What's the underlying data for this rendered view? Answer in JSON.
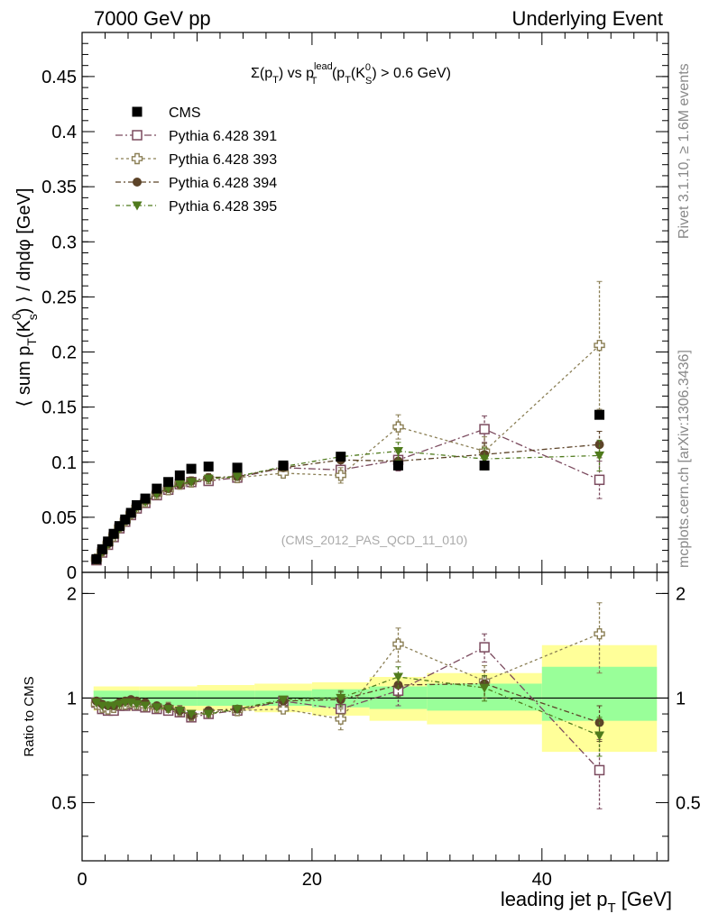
{
  "header": {
    "left_text": "7000 GeV pp",
    "right_text": "Underlying Event"
  },
  "plot_title": {
    "sigma": "Σ(p",
    "sub_t1": "T",
    "vs": ") vs p",
    "sup_lead": "lead",
    "sub_t2": "T",
    "paren": " (p",
    "sub_t3": "T",
    "k": "(K",
    "sup_0": "0",
    "sub_s": "S",
    "tail": ") > 0.6 GeV)"
  },
  "side_labels": {
    "rivet": "Rivet 3.1.10, ≥ 1.6M events",
    "mcplots": "mcplots.cern.ch [arXiv:1306.3436]"
  },
  "analysis_note": "(CMS_2012_PAS_QCD_11_010)",
  "y_label_main": "⟨ sum p_T(K_S^0) ⟩ / dηdφ [GeV]",
  "y_label_main_parts": {
    "open": "⟨ sum p",
    "sub_t": "T",
    "k": "(K",
    "sup_0": "0",
    "sub_s": "s",
    "close": ") ⟩ / dηdφ [GeV]"
  },
  "y_label_ratio": "Ratio to CMS",
  "x_label": {
    "main": "leading jet p",
    "sub": "T",
    "unit": " [GeV]"
  },
  "colors": {
    "cms": "#000000",
    "p391": "#7b4a5e",
    "p393": "#8b7f55",
    "p394": "#5c4328",
    "p395": "#4f7a1c",
    "band_yellow": "#ffff99",
    "band_green": "#99ff99"
  },
  "chart_data": [
    {
      "type": "scatter",
      "panel": "main",
      "ylim": [
        0,
        0.49
      ],
      "xlim": [
        0,
        51
      ],
      "yticks": [
        0,
        0.05,
        0.1,
        0.15,
        0.2,
        0.25,
        0.3,
        0.35,
        0.4,
        0.45
      ],
      "ytick_labels": [
        "0",
        "0.05",
        "0.1",
        "0.15",
        "0.2",
        "0.25",
        "0.3",
        "0.35",
        "0.4",
        "0.45"
      ],
      "xticks": [
        0,
        20,
        40
      ],
      "xtick_labels": [
        "0",
        "20",
        "40"
      ],
      "legend_position": "top-left",
      "x": [
        1.25,
        1.75,
        2.25,
        2.75,
        3.25,
        3.75,
        4.25,
        4.75,
        5.5,
        6.5,
        7.5,
        8.5,
        9.5,
        11,
        13.5,
        17.5,
        22.5,
        27.5,
        35,
        45
      ],
      "series": [
        {
          "name": "CMS",
          "marker": "square-filled",
          "values": [
            0.012,
            0.021,
            0.028,
            0.035,
            0.042,
            0.048,
            0.054,
            0.061,
            0.067,
            0.076,
            0.082,
            0.088,
            0.094,
            0.096,
            0.095,
            0.097,
            0.105,
            0.097,
            0.097,
            0.143
          ]
        },
        {
          "name": "Pythia 6.428 391",
          "marker": "square-open",
          "values": [
            0.011,
            0.018,
            0.025,
            0.032,
            0.04,
            0.046,
            0.052,
            0.058,
            0.063,
            0.07,
            0.075,
            0.08,
            0.082,
            0.083,
            0.086,
            0.095,
            0.093,
            0.102,
            0.13,
            0.084
          ],
          "errors": [
            0,
            0,
            0,
            0,
            0,
            0,
            0,
            0,
            0,
            0,
            0,
            0,
            0,
            0,
            0,
            0,
            0.006,
            0.01,
            0.012,
            0.017
          ]
        },
        {
          "name": "Pythia 6.428 393",
          "marker": "cross-open",
          "values": [
            0.012,
            0.019,
            0.026,
            0.033,
            0.041,
            0.047,
            0.053,
            0.059,
            0.064,
            0.071,
            0.075,
            0.08,
            0.082,
            0.085,
            0.086,
            0.09,
            0.088,
            0.132,
            0.11,
            0.206
          ],
          "errors": [
            0,
            0,
            0,
            0,
            0,
            0,
            0,
            0,
            0,
            0,
            0,
            0,
            0,
            0,
            0,
            0,
            0.007,
            0.011,
            0.013,
            0.058
          ]
        },
        {
          "name": "Pythia 6.428 394",
          "marker": "circle-filled",
          "values": [
            0.012,
            0.019,
            0.026,
            0.034,
            0.041,
            0.047,
            0.054,
            0.06,
            0.065,
            0.072,
            0.076,
            0.08,
            0.083,
            0.086,
            0.087,
            0.095,
            0.102,
            0.101,
            0.107,
            0.116
          ],
          "errors": [
            0,
            0,
            0,
            0,
            0,
            0,
            0,
            0,
            0,
            0,
            0,
            0,
            0,
            0,
            0,
            0,
            0,
            0.008,
            0.01,
            0.012
          ]
        },
        {
          "name": "Pythia 6.428 395",
          "marker": "triangle-down-filled",
          "values": [
            0.012,
            0.019,
            0.026,
            0.034,
            0.04,
            0.047,
            0.053,
            0.059,
            0.064,
            0.071,
            0.076,
            0.08,
            0.082,
            0.085,
            0.087,
            0.096,
            0.105,
            0.11,
            0.103,
            0.106
          ],
          "errors": [
            0,
            0,
            0,
            0,
            0,
            0,
            0,
            0,
            0,
            0,
            0,
            0,
            0,
            0,
            0,
            0,
            0,
            0.008,
            0.01,
            0.014
          ]
        }
      ]
    },
    {
      "type": "scatter",
      "panel": "ratio",
      "ylim": [
        0.34,
        2.3
      ],
      "xlim": [
        0,
        51
      ],
      "yticks": [
        0.5,
        1,
        2
      ],
      "ytick_labels": [
        "0.5",
        "1",
        "2"
      ],
      "xticks": [
        0,
        20,
        40
      ],
      "xtick_labels": [
        "0",
        "20",
        "40"
      ],
      "reference_line": 1,
      "bands": [
        {
          "x0": 1,
          "x1": 5,
          "yellow": [
            0.92,
            1.08
          ],
          "green": [
            0.95,
            1.05
          ]
        },
        {
          "x0": 5,
          "x1": 10,
          "yellow": [
            0.92,
            1.08
          ],
          "green": [
            0.95,
            1.05
          ]
        },
        {
          "x0": 10,
          "x1": 15,
          "yellow": [
            0.92,
            1.09
          ],
          "green": [
            0.95,
            1.05
          ]
        },
        {
          "x0": 15,
          "x1": 20,
          "yellow": [
            0.91,
            1.1
          ],
          "green": [
            0.95,
            1.05
          ]
        },
        {
          "x0": 20,
          "x1": 25,
          "yellow": [
            0.89,
            1.11
          ],
          "green": [
            0.94,
            1.06
          ]
        },
        {
          "x0": 25,
          "x1": 30,
          "yellow": [
            0.86,
            1.15
          ],
          "green": [
            0.93,
            1.08
          ]
        },
        {
          "x0": 30,
          "x1": 40,
          "yellow": [
            0.84,
            1.18
          ],
          "green": [
            0.92,
            1.1
          ]
        },
        {
          "x0": 40,
          "x1": 50,
          "yellow": [
            0.7,
            1.42
          ],
          "green": [
            0.86,
            1.23
          ]
        }
      ],
      "x": [
        1.25,
        1.75,
        2.25,
        2.75,
        3.25,
        3.75,
        4.25,
        4.75,
        5.5,
        6.5,
        7.5,
        8.5,
        9.5,
        11,
        13.5,
        17.5,
        22.5,
        27.5,
        35,
        45
      ],
      "series": [
        {
          "name": "Pythia 6.428 391",
          "values": [
            0.97,
            0.93,
            0.92,
            0.92,
            0.95,
            0.95,
            0.96,
            0.95,
            0.94,
            0.93,
            0.92,
            0.91,
            0.88,
            0.9,
            0.92,
            0.98,
            0.93,
            1.05,
            1.4,
            0.62
          ],
          "errors": [
            0,
            0,
            0,
            0,
            0,
            0,
            0,
            0,
            0,
            0,
            0,
            0,
            0,
            0,
            0,
            0,
            0.06,
            0.1,
            0.13,
            0.14
          ]
        },
        {
          "name": "Pythia 6.428 393",
          "values": [
            0.96,
            0.94,
            0.93,
            0.94,
            0.96,
            0.96,
            0.97,
            0.96,
            0.95,
            0.94,
            0.94,
            0.92,
            0.89,
            0.91,
            0.92,
            0.93,
            0.87,
            1.43,
            1.12,
            1.53
          ],
          "errors": [
            0,
            0,
            0,
            0,
            0,
            0,
            0,
            0,
            0,
            0,
            0,
            0,
            0,
            0,
            0,
            0,
            0.06,
            0.16,
            0.12,
            0.35
          ]
        },
        {
          "name": "Pythia 6.428 394",
          "values": [
            0.98,
            0.96,
            0.95,
            0.95,
            0.97,
            0.98,
            0.99,
            0.98,
            0.97,
            0.95,
            0.94,
            0.92,
            0.89,
            0.92,
            0.93,
            0.98,
            0.99,
            1.09,
            1.1,
            0.85
          ],
          "errors": [
            0,
            0,
            0,
            0,
            0,
            0,
            0,
            0,
            0,
            0,
            0,
            0,
            0,
            0,
            0,
            0,
            0.05,
            0.08,
            0.1,
            0.1
          ]
        },
        {
          "name": "Pythia 6.428 395",
          "values": [
            0.97,
            0.95,
            0.95,
            0.95,
            0.96,
            0.97,
            0.97,
            0.96,
            0.95,
            0.94,
            0.93,
            0.92,
            0.9,
            0.9,
            0.93,
            0.99,
            1.0,
            1.15,
            1.07,
            0.78
          ],
          "errors": [
            0,
            0,
            0,
            0,
            0,
            0,
            0,
            0,
            0,
            0,
            0,
            0,
            0,
            0,
            0,
            0,
            0.05,
            0.08,
            0.09,
            0.1
          ]
        }
      ]
    }
  ]
}
